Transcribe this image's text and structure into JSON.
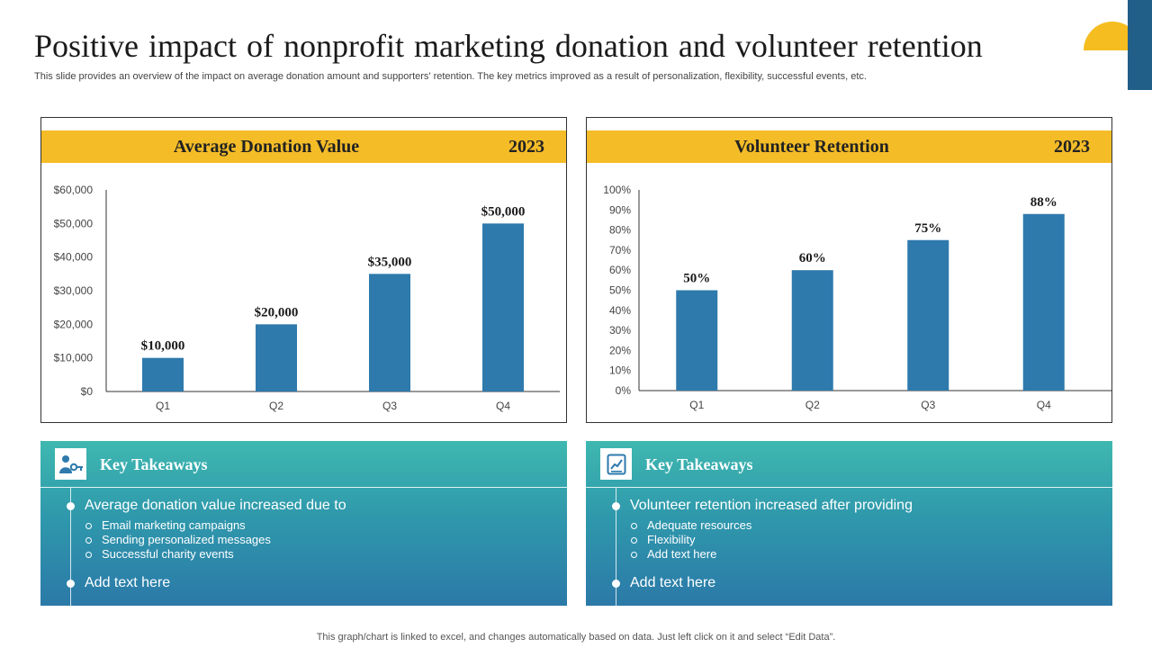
{
  "slide": {
    "title": "Positive impact of nonprofit marketing donation and volunteer retention",
    "subtitle": "This slide provides an overview of the impact on average donation amount and supporters' retention. The key metrics improved as a result of personalization, flexibility, successful events, etc.",
    "footer": "This graph/chart is linked to excel,  and changes automatically based on data. Just left click on it and select “Edit Data”."
  },
  "colors": {
    "bar": "#2e7aad",
    "header": "#f4bc27",
    "axis": "#333333",
    "tick_text": "#444444",
    "label_text": "#1a1a1a"
  },
  "chart_data": [
    {
      "type": "bar",
      "title": "Average Donation Value",
      "year": "2023",
      "categories": [
        "Q1",
        "Q2",
        "Q3",
        "Q4"
      ],
      "values": [
        10000,
        20000,
        35000,
        50000
      ],
      "data_labels": [
        "$10,000",
        "$20,000",
        "$35,000",
        "$50,000"
      ],
      "yticks": [
        "$0",
        "$10,000",
        "$20,000",
        "$30,000",
        "$40,000",
        "$50,000",
        "$60,000"
      ],
      "ylim": [
        0,
        60000
      ],
      "xlabel": "",
      "ylabel": "",
      "grid": false,
      "legend": "none"
    },
    {
      "type": "bar",
      "title": "Volunteer Retention",
      "year": "2023",
      "categories": [
        "Q1",
        "Q2",
        "Q3",
        "Q4"
      ],
      "values": [
        50,
        60,
        75,
        88
      ],
      "data_labels": [
        "50%",
        "60%",
        "75%",
        "88%"
      ],
      "yticks": [
        "0%",
        "10%",
        "20%",
        "30%",
        "40%",
        "50%",
        "60%",
        "70%",
        "80%",
        "90%",
        "100%"
      ],
      "ylim": [
        0,
        100
      ],
      "xlabel": "",
      "ylabel": "",
      "grid": false,
      "legend": "none"
    }
  ],
  "takeaways": [
    {
      "icon": "user-key-icon",
      "title": "Key Takeaways",
      "main": "Average donation value increased due to",
      "subs": [
        "Email marketing campaigns",
        "Sending personalized messages",
        "Successful charity events"
      ],
      "extra": "Add text here"
    },
    {
      "icon": "chart-document-icon",
      "title": "Key Takeaways",
      "main": "Volunteer retention increased after providing",
      "subs": [
        "Adequate resources",
        "Flexibility",
        "Add text here"
      ],
      "extra": "Add text here"
    }
  ]
}
